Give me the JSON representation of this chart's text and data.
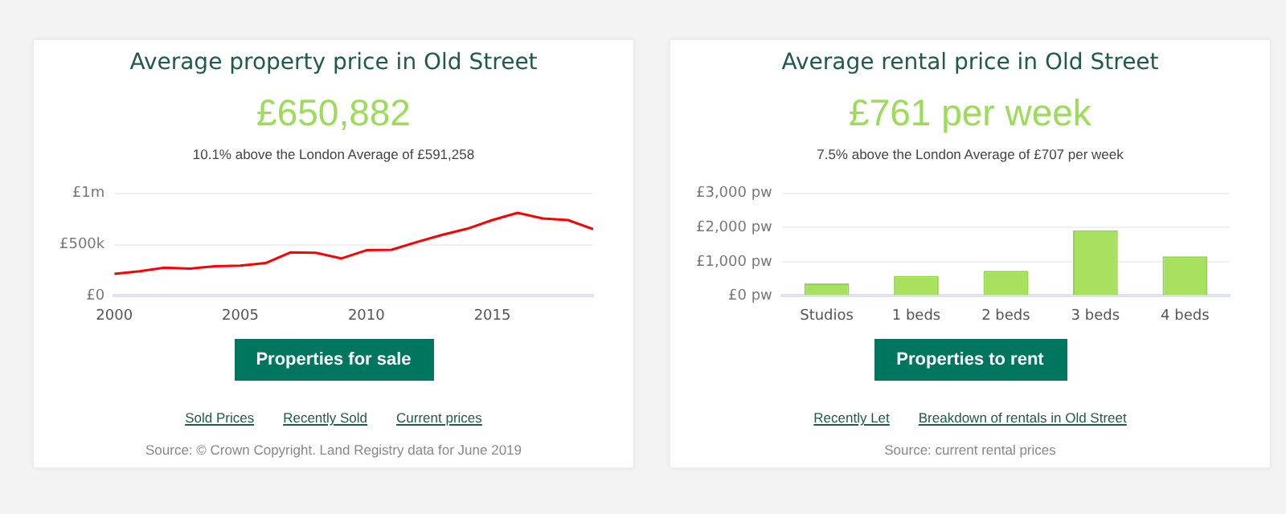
{
  "chart_data": [
    {
      "type": "line",
      "title": "Average property price in Old Street",
      "subtitle": "£650,882",
      "annotations": [
        "10.1% above the London Average of £591,258",
        "Properties for sale",
        "Sold Prices",
        "Recently Sold",
        "Current prices",
        "Source: © Crown Copyright. Land Registry data for June 2019"
      ],
      "x": [
        2000,
        2001,
        2002,
        2003,
        2004,
        2005,
        2006,
        2007,
        2008,
        2009,
        2010,
        2011,
        2012,
        2013,
        2014,
        2015,
        2016,
        2017,
        2018,
        2019
      ],
      "series": [
        {
          "color": "#ff0000",
          "values": [
            215000,
            240000,
            275000,
            265000,
            290000,
            295000,
            320000,
            425000,
            420000,
            365000,
            445000,
            450000,
            525000,
            595000,
            655000,
            740000,
            810000,
            755000,
            740000,
            650882
          ]
        }
      ],
      "xlim": [
        2000,
        2019
      ],
      "xticks": [
        2000,
        2005,
        2010,
        2015
      ],
      "ylim": [
        0,
        1000000
      ],
      "yticks": [
        {
          "value": 0,
          "label": "£0"
        },
        {
          "value": 500000,
          "label": "£500k"
        },
        {
          "value": 1000000,
          "label": "£1m"
        }
      ],
      "grid": "y",
      "legend": false,
      "marker": "none"
    },
    {
      "type": "bar",
      "title": "Average rental price in Old Street",
      "subtitle": "£761 per week",
      "annotations": [
        "7.5% above the London Average of £707 per week",
        "Properties to rent",
        "Recently Let",
        "Breakdown of rentals in Old Street",
        "Source: current rental prices"
      ],
      "categories": [
        "Studios",
        "1 beds",
        "2 beds",
        "3 beds",
        "4 beds"
      ],
      "values": [
        360,
        585,
        735,
        1920,
        1155
      ],
      "color": "#a8e05f",
      "ylim": [
        0,
        3000
      ],
      "yticks": [
        {
          "value": 0,
          "label": "£0 pw"
        },
        {
          "value": 1000,
          "label": "£1,000 pw"
        },
        {
          "value": 2000,
          "label": "£2,000 pw"
        },
        {
          "value": 3000,
          "label": "£3,000 pw"
        }
      ],
      "grid": "y",
      "legend": false
    }
  ]
}
